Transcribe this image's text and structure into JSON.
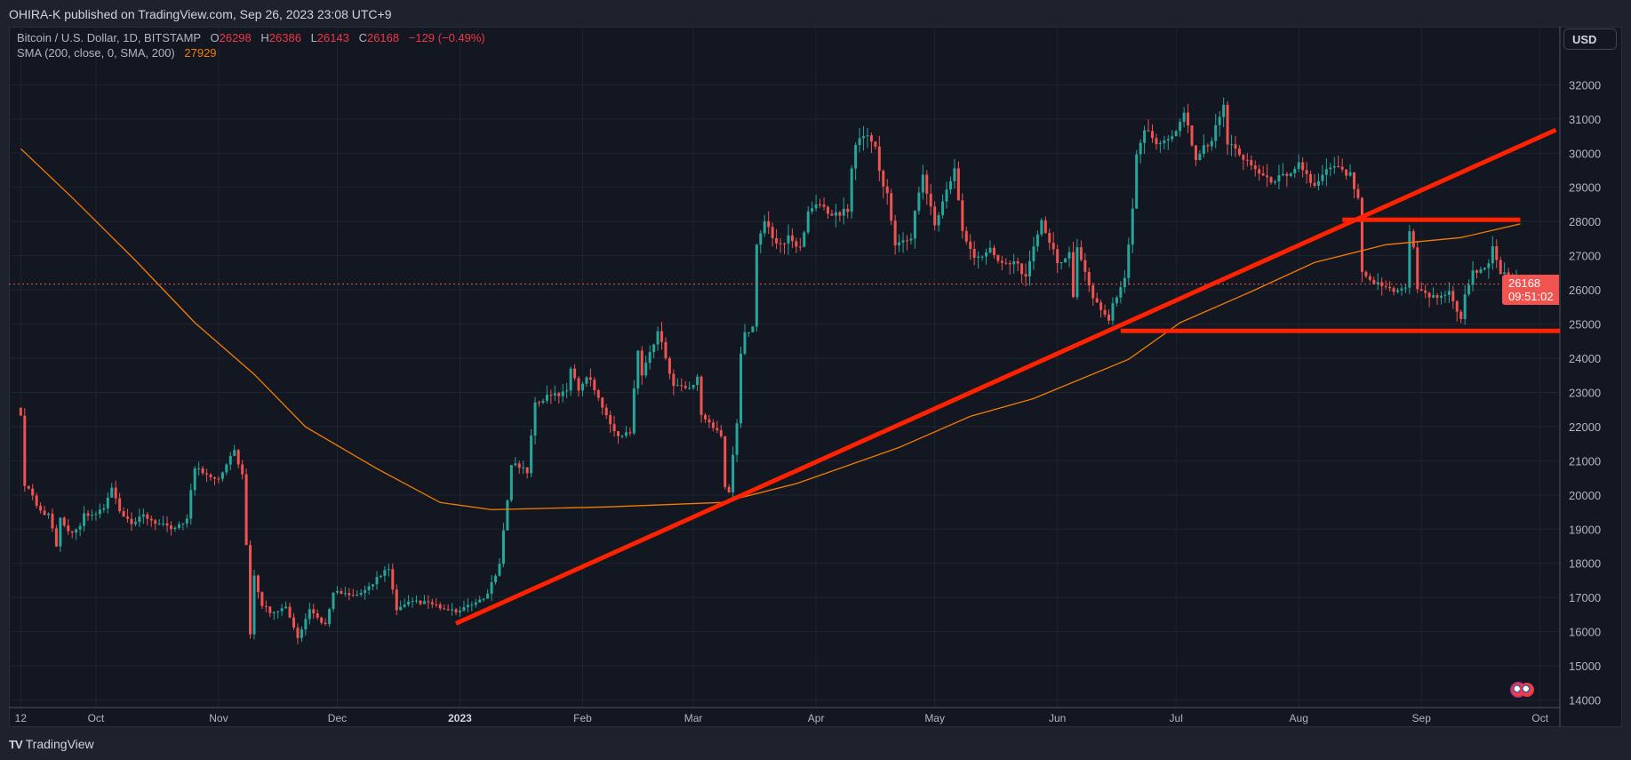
{
  "publish_line": "OHIRA-K published on TradingView.com, Sep 26, 2023 23:08 UTC+9",
  "legend": {
    "symbol": "Bitcoin / U.S. Dollar, 1D, BITSTAMP",
    "o_label": "O",
    "o": "26298",
    "h_label": "H",
    "h": "26386",
    "l_label": "L",
    "l": "26143",
    "c_label": "C",
    "c": "26168",
    "change": "−129 (−0.49%)",
    "sma_label": "SMA (200, close, 0, SMA, 200)",
    "sma_value": "27929"
  },
  "currency": "USD",
  "last_price": {
    "price": "26168",
    "countdown": "09:51:02"
  },
  "footer": {
    "brand": "TradingView"
  },
  "colors": {
    "background": "#131722",
    "up": "#26a69a",
    "down": "#ef5350",
    "sma": "#f57c00",
    "drawing": "#ff2200",
    "grid": "#1f2430"
  },
  "events": [
    "us-flag-icon",
    "us-flag-icon"
  ],
  "chart_data": {
    "type": "candlestick",
    "title": "",
    "xlim": [
      "2022-09-09",
      "2023-10-06"
    ],
    "ylim": [
      13780,
      33700
    ],
    "grid": true,
    "y_ticks": [
      14000,
      15000,
      16000,
      17000,
      18000,
      19000,
      20000,
      21000,
      22000,
      23000,
      24000,
      25000,
      26000,
      27000,
      28000,
      29000,
      30000,
      31000,
      32000
    ],
    "x_ticks": [
      {
        "label": "12",
        "date": "2022-09-12"
      },
      {
        "label": "Oct",
        "date": "2022-10-01"
      },
      {
        "label": "Nov",
        "date": "2022-11-01"
      },
      {
        "label": "Dec",
        "date": "2022-12-01"
      },
      {
        "label": "2023",
        "date": "2023-01-01",
        "bold": true
      },
      {
        "label": "Feb",
        "date": "2023-02-01"
      },
      {
        "label": "Mar",
        "date": "2023-03-01"
      },
      {
        "label": "Apr",
        "date": "2023-04-01"
      },
      {
        "label": "May",
        "date": "2023-05-01"
      },
      {
        "label": "Jun",
        "date": "2023-06-01"
      },
      {
        "label": "Jul",
        "date": "2023-07-01"
      },
      {
        "label": "Aug",
        "date": "2023-08-01"
      },
      {
        "label": "Sep",
        "date": "2023-09-01"
      },
      {
        "label": "Oct",
        "date": "2023-10-01"
      }
    ],
    "close_anchors": [
      [
        "2022-09-12",
        22400
      ],
      [
        "2022-09-13",
        20200
      ],
      [
        "2022-09-14",
        20250
      ],
      [
        "2022-09-16",
        19700
      ],
      [
        "2022-09-18",
        19400
      ],
      [
        "2022-09-19",
        19500
      ],
      [
        "2022-09-21",
        18500
      ],
      [
        "2022-09-22",
        19400
      ],
      [
        "2022-09-24",
        18900
      ],
      [
        "2022-09-27",
        19100
      ],
      [
        "2022-09-28",
        19400
      ],
      [
        "2022-09-30",
        19400
      ],
      [
        "2022-10-03",
        19600
      ],
      [
        "2022-10-05",
        20200
      ],
      [
        "2022-10-07",
        19500
      ],
      [
        "2022-10-10",
        19100
      ],
      [
        "2022-10-13",
        19400
      ],
      [
        "2022-10-16",
        19200
      ],
      [
        "2022-10-20",
        19000
      ],
      [
        "2022-10-24",
        19300
      ],
      [
        "2022-10-25",
        20100
      ],
      [
        "2022-10-26",
        20800
      ],
      [
        "2022-10-29",
        20600
      ],
      [
        "2022-11-01",
        20500
      ],
      [
        "2022-11-04",
        21150
      ],
      [
        "2022-11-05",
        21300
      ],
      [
        "2022-11-07",
        20600
      ],
      [
        "2022-11-08",
        18500
      ],
      [
        "2022-11-09",
        15900
      ],
      [
        "2022-11-10",
        17600
      ],
      [
        "2022-11-12",
        16800
      ],
      [
        "2022-11-14",
        16600
      ],
      [
        "2022-11-18",
        16700
      ],
      [
        "2022-11-21",
        15800
      ],
      [
        "2022-11-24",
        16600
      ],
      [
        "2022-11-28",
        16200
      ],
      [
        "2022-11-30",
        17200
      ],
      [
        "2022-12-05",
        17000
      ],
      [
        "2022-12-08",
        17200
      ],
      [
        "2022-12-13",
        17800
      ],
      [
        "2022-12-14",
        17800
      ],
      [
        "2022-12-16",
        16600
      ],
      [
        "2022-12-20",
        16900
      ],
      [
        "2022-12-25",
        16800
      ],
      [
        "2022-12-29",
        16600
      ],
      [
        "2023-01-01",
        16600
      ],
      [
        "2023-01-05",
        16850
      ],
      [
        "2023-01-08",
        17100
      ],
      [
        "2023-01-11",
        17950
      ],
      [
        "2023-01-12",
        18900
      ],
      [
        "2023-01-13",
        19900
      ],
      [
        "2023-01-14",
        20950
      ],
      [
        "2023-01-18",
        20700
      ],
      [
        "2023-01-20",
        22700
      ],
      [
        "2023-01-24",
        22900
      ],
      [
        "2023-01-28",
        23000
      ],
      [
        "2023-01-29",
        23750
      ],
      [
        "2023-01-31",
        23100
      ],
      [
        "2023-02-02",
        23500
      ],
      [
        "2023-02-05",
        22900
      ],
      [
        "2023-02-09",
        21800
      ],
      [
        "2023-02-13",
        21800
      ],
      [
        "2023-02-15",
        24300
      ],
      [
        "2023-02-16",
        23500
      ],
      [
        "2023-02-20",
        24800
      ],
      [
        "2023-02-24",
        23200
      ],
      [
        "2023-02-28",
        23100
      ],
      [
        "2023-03-02",
        23500
      ],
      [
        "2023-03-03",
        22400
      ],
      [
        "2023-03-08",
        21700
      ],
      [
        "2023-03-09",
        20300
      ],
      [
        "2023-03-10",
        20100
      ],
      [
        "2023-03-12",
        22100
      ],
      [
        "2023-03-13",
        24100
      ],
      [
        "2023-03-14",
        24700
      ],
      [
        "2023-03-16",
        25000
      ],
      [
        "2023-03-17",
        27400
      ],
      [
        "2023-03-19",
        28000
      ],
      [
        "2023-03-22",
        27300
      ],
      [
        "2023-03-25",
        27500
      ],
      [
        "2023-03-28",
        27200
      ],
      [
        "2023-03-30",
        28300
      ],
      [
        "2023-04-02",
        28500
      ],
      [
        "2023-04-05",
        28200
      ],
      [
        "2023-04-09",
        28300
      ],
      [
        "2023-04-10",
        29600
      ],
      [
        "2023-04-11",
        30300
      ],
      [
        "2023-04-14",
        30500
      ],
      [
        "2023-04-16",
        30300
      ],
      [
        "2023-04-17",
        29400
      ],
      [
        "2023-04-19",
        28800
      ],
      [
        "2023-04-21",
        27300
      ],
      [
        "2023-04-25",
        27500
      ],
      [
        "2023-04-26",
        28400
      ],
      [
        "2023-04-28",
        29300
      ],
      [
        "2023-05-01",
        27900
      ],
      [
        "2023-05-04",
        28900
      ],
      [
        "2023-05-06",
        29500
      ],
      [
        "2023-05-08",
        27700
      ],
      [
        "2023-05-11",
        26900
      ],
      [
        "2023-05-15",
        27200
      ],
      [
        "2023-05-18",
        26800
      ],
      [
        "2023-05-22",
        26800
      ],
      [
        "2023-05-24",
        26300
      ],
      [
        "2023-05-28",
        28100
      ],
      [
        "2023-05-29",
        27700
      ],
      [
        "2023-06-01",
        26800
      ],
      [
        "2023-06-04",
        27100
      ],
      [
        "2023-06-05",
        25700
      ],
      [
        "2023-06-06",
        27200
      ],
      [
        "2023-06-10",
        25800
      ],
      [
        "2023-06-14",
        25100
      ],
      [
        "2023-06-15",
        25600
      ],
      [
        "2023-06-18",
        26300
      ],
      [
        "2023-06-20",
        28300
      ],
      [
        "2023-06-21",
        30000
      ],
      [
        "2023-06-23",
        30700
      ],
      [
        "2023-06-26",
        30300
      ],
      [
        "2023-06-30",
        30500
      ],
      [
        "2023-07-03",
        31200
      ],
      [
        "2023-07-06",
        29900
      ],
      [
        "2023-07-10",
        30400
      ],
      [
        "2023-07-13",
        31400
      ],
      [
        "2023-07-14",
        30300
      ],
      [
        "2023-07-18",
        29900
      ],
      [
        "2023-07-24",
        29200
      ],
      [
        "2023-07-28",
        29300
      ],
      [
        "2023-08-01",
        29700
      ],
      [
        "2023-08-05",
        29000
      ],
      [
        "2023-08-09",
        29600
      ],
      [
        "2023-08-14",
        29400
      ],
      [
        "2023-08-16",
        28700
      ],
      [
        "2023-08-17",
        26600
      ],
      [
        "2023-08-20",
        26200
      ],
      [
        "2023-08-25",
        26000
      ],
      [
        "2023-08-28",
        26100
      ],
      [
        "2023-08-29",
        27700
      ],
      [
        "2023-08-30",
        27300
      ],
      [
        "2023-08-31",
        26000
      ],
      [
        "2023-09-04",
        25800
      ],
      [
        "2023-09-08",
        25900
      ],
      [
        "2023-09-11",
        25200
      ],
      [
        "2023-09-12",
        25800
      ],
      [
        "2023-09-14",
        26500
      ],
      [
        "2023-09-18",
        26800
      ],
      [
        "2023-09-19",
        27200
      ],
      [
        "2023-09-21",
        26500
      ],
      [
        "2023-09-24",
        26300
      ],
      [
        "2023-09-26",
        26168
      ]
    ],
    "last_candle": {
      "open": 26298,
      "high": 26386,
      "low": 26143,
      "close": 26168
    },
    "sma200": [
      [
        "2022-09-12",
        30130
      ],
      [
        "2022-09-25",
        28700
      ],
      [
        "2022-10-11",
        26860
      ],
      [
        "2022-10-26",
        25040
      ],
      [
        "2022-11-10",
        23530
      ],
      [
        "2022-11-23",
        21990
      ],
      [
        "2022-12-11",
        20770
      ],
      [
        "2022-12-27",
        19780
      ],
      [
        "2023-01-09",
        19570
      ],
      [
        "2023-02-07",
        19650
      ],
      [
        "2023-03-08",
        19780
      ],
      [
        "2023-03-27",
        20330
      ],
      [
        "2023-04-22",
        21390
      ],
      [
        "2023-05-10",
        22300
      ],
      [
        "2023-05-26",
        22820
      ],
      [
        "2023-06-19",
        23970
      ],
      [
        "2023-07-02",
        25040
      ],
      [
        "2023-07-20",
        25950
      ],
      [
        "2023-08-05",
        26800
      ],
      [
        "2023-08-23",
        27320
      ],
      [
        "2023-09-11",
        27530
      ],
      [
        "2023-09-26",
        27929
      ]
    ],
    "annotations": [
      {
        "kind": "trend-line",
        "from": [
          "2022-12-31",
          16240
        ],
        "to": [
          "2023-10-05",
          30680
        ]
      },
      {
        "kind": "horizontal-segment",
        "from": [
          "2023-08-12",
          28050
        ],
        "to": [
          "2023-09-26",
          28050
        ]
      },
      {
        "kind": "horizontal-segment",
        "from": [
          "2023-06-17",
          24800
        ],
        "to": [
          "2023-10-06",
          24800
        ]
      }
    ],
    "current_price": 26168
  }
}
